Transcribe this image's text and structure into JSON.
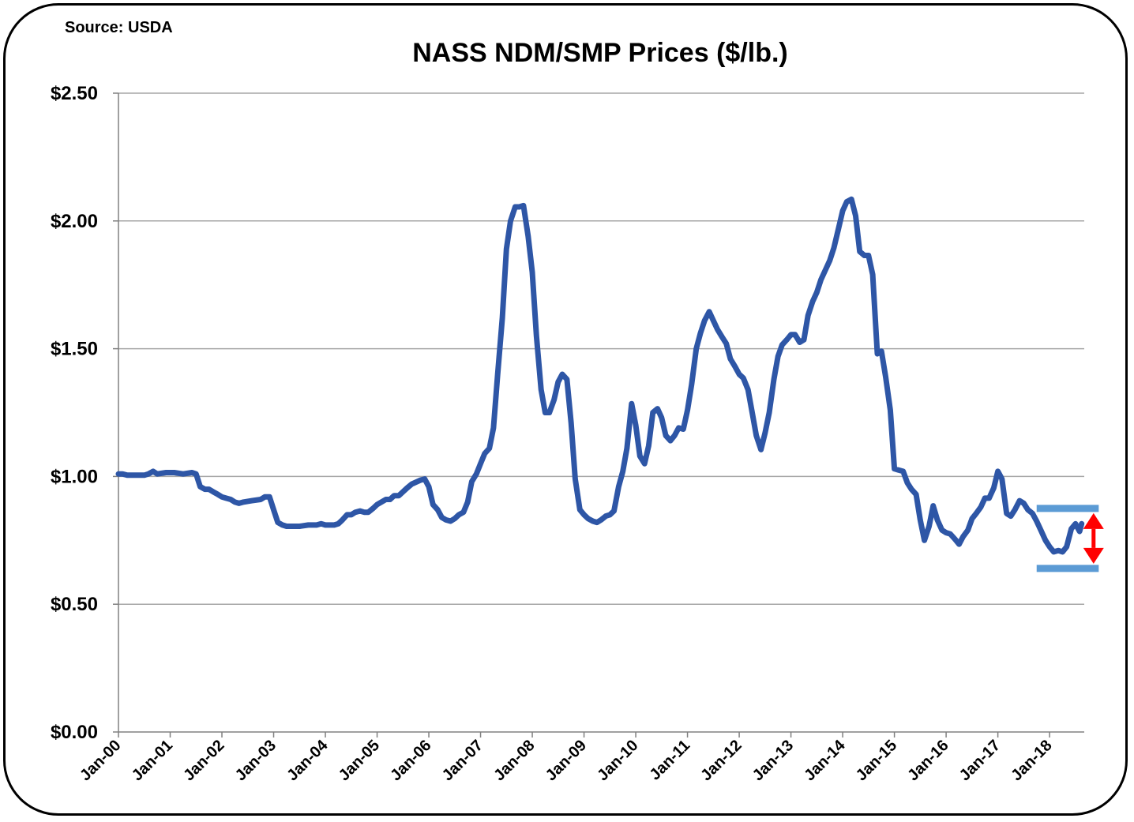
{
  "source": "Source: USDA",
  "title": "NASS NDM/SMP Prices ($/lb.)",
  "colors": {
    "line": "#2E56A6",
    "range_bar": "#5B9BD5",
    "arrow": "#FF0000",
    "grid": "#A6A6A6"
  },
  "chart_data": {
    "type": "line",
    "title": "NASS NDM/SMP Prices ($/lb.)",
    "xlabel": "",
    "ylabel": "",
    "ylim": [
      0,
      2.5
    ],
    "yticks": [
      {
        "value": 0,
        "label": "$0.00"
      },
      {
        "value": 0.5,
        "label": "$0.50"
      },
      {
        "value": 1.0,
        "label": "$1.00"
      },
      {
        "value": 1.5,
        "label": "$1.50"
      },
      {
        "value": 2.0,
        "label": "$2.00"
      },
      {
        "value": 2.5,
        "label": "$2.50"
      }
    ],
    "xlim": [
      2000.0,
      2018.67
    ],
    "xticks": [
      {
        "value": 2000,
        "label": "Jan-00"
      },
      {
        "value": 2001,
        "label": "Jan-01"
      },
      {
        "value": 2002,
        "label": "Jan-02"
      },
      {
        "value": 2003,
        "label": "Jan-03"
      },
      {
        "value": 2004,
        "label": "Jan-04"
      },
      {
        "value": 2005,
        "label": "Jan-05"
      },
      {
        "value": 2006,
        "label": "Jan-06"
      },
      {
        "value": 2007,
        "label": "Jan-07"
      },
      {
        "value": 2008,
        "label": "Jan-08"
      },
      {
        "value": 2009,
        "label": "Jan-09"
      },
      {
        "value": 2010,
        "label": "Jan-10"
      },
      {
        "value": 2011,
        "label": "Jan-11"
      },
      {
        "value": 2012,
        "label": "Jan-12"
      },
      {
        "value": 2013,
        "label": "Jan-13"
      },
      {
        "value": 2014,
        "label": "Jan-14"
      },
      {
        "value": 2015,
        "label": "Jan-15"
      },
      {
        "value": 2016,
        "label": "Jan-16"
      },
      {
        "value": 2017,
        "label": "Jan-17"
      },
      {
        "value": 2018,
        "label": "Jan-18"
      }
    ],
    "grid": true,
    "series": [
      {
        "name": "NDM/SMP price",
        "points": [
          [
            2000.0,
            1.01
          ],
          [
            2000.08,
            1.01
          ],
          [
            2000.17,
            1.005
          ],
          [
            2000.33,
            1.005
          ],
          [
            2000.5,
            1.005
          ],
          [
            2000.58,
            1.01
          ],
          [
            2000.67,
            1.02
          ],
          [
            2000.75,
            1.01
          ],
          [
            2000.92,
            1.015
          ],
          [
            2001.08,
            1.015
          ],
          [
            2001.25,
            1.01
          ],
          [
            2001.42,
            1.015
          ],
          [
            2001.5,
            1.01
          ],
          [
            2001.58,
            0.96
          ],
          [
            2001.67,
            0.95
          ],
          [
            2001.75,
            0.95
          ],
          [
            2001.83,
            0.94
          ],
          [
            2001.92,
            0.93
          ],
          [
            2002.0,
            0.92
          ],
          [
            2002.08,
            0.915
          ],
          [
            2002.17,
            0.91
          ],
          [
            2002.25,
            0.9
          ],
          [
            2002.33,
            0.895
          ],
          [
            2002.42,
            0.9
          ],
          [
            2002.58,
            0.905
          ],
          [
            2002.75,
            0.91
          ],
          [
            2002.83,
            0.92
          ],
          [
            2002.92,
            0.92
          ],
          [
            2003.0,
            0.87
          ],
          [
            2003.08,
            0.82
          ],
          [
            2003.17,
            0.81
          ],
          [
            2003.25,
            0.805
          ],
          [
            2003.5,
            0.805
          ],
          [
            2003.67,
            0.81
          ],
          [
            2003.83,
            0.81
          ],
          [
            2003.92,
            0.815
          ],
          [
            2004.0,
            0.81
          ],
          [
            2004.17,
            0.81
          ],
          [
            2004.25,
            0.815
          ],
          [
            2004.33,
            0.83
          ],
          [
            2004.42,
            0.85
          ],
          [
            2004.5,
            0.85
          ],
          [
            2004.58,
            0.86
          ],
          [
            2004.67,
            0.865
          ],
          [
            2004.75,
            0.86
          ],
          [
            2004.83,
            0.86
          ],
          [
            2004.92,
            0.875
          ],
          [
            2005.0,
            0.89
          ],
          [
            2005.17,
            0.91
          ],
          [
            2005.25,
            0.91
          ],
          [
            2005.33,
            0.925
          ],
          [
            2005.42,
            0.925
          ],
          [
            2005.5,
            0.94
          ],
          [
            2005.58,
            0.955
          ],
          [
            2005.67,
            0.97
          ],
          [
            2005.83,
            0.985
          ],
          [
            2005.92,
            0.99
          ],
          [
            2006.0,
            0.96
          ],
          [
            2006.08,
            0.89
          ],
          [
            2006.17,
            0.87
          ],
          [
            2006.25,
            0.84
          ],
          [
            2006.33,
            0.83
          ],
          [
            2006.42,
            0.825
          ],
          [
            2006.5,
            0.835
          ],
          [
            2006.58,
            0.85
          ],
          [
            2006.67,
            0.86
          ],
          [
            2006.75,
            0.9
          ],
          [
            2006.83,
            0.98
          ],
          [
            2006.92,
            1.01
          ],
          [
            2007.0,
            1.05
          ],
          [
            2007.08,
            1.09
          ],
          [
            2007.17,
            1.11
          ],
          [
            2007.25,
            1.19
          ],
          [
            2007.33,
            1.4
          ],
          [
            2007.42,
            1.62
          ],
          [
            2007.5,
            1.89
          ],
          [
            2007.58,
            2.0
          ],
          [
            2007.67,
            2.055
          ],
          [
            2007.75,
            2.055
          ],
          [
            2007.83,
            2.06
          ],
          [
            2007.92,
            1.94
          ],
          [
            2008.0,
            1.8
          ],
          [
            2008.08,
            1.55
          ],
          [
            2008.17,
            1.34
          ],
          [
            2008.25,
            1.25
          ],
          [
            2008.33,
            1.25
          ],
          [
            2008.42,
            1.3
          ],
          [
            2008.5,
            1.37
          ],
          [
            2008.58,
            1.4
          ],
          [
            2008.67,
            1.38
          ],
          [
            2008.75,
            1.21
          ],
          [
            2008.83,
            0.99
          ],
          [
            2008.92,
            0.87
          ],
          [
            2009.0,
            0.85
          ],
          [
            2009.08,
            0.835
          ],
          [
            2009.17,
            0.825
          ],
          [
            2009.25,
            0.82
          ],
          [
            2009.33,
            0.83
          ],
          [
            2009.42,
            0.845
          ],
          [
            2009.5,
            0.85
          ],
          [
            2009.58,
            0.865
          ],
          [
            2009.67,
            0.96
          ],
          [
            2009.75,
            1.02
          ],
          [
            2009.83,
            1.11
          ],
          [
            2009.92,
            1.285
          ],
          [
            2010.0,
            1.2
          ],
          [
            2010.08,
            1.08
          ],
          [
            2010.17,
            1.05
          ],
          [
            2010.25,
            1.12
          ],
          [
            2010.33,
            1.25
          ],
          [
            2010.42,
            1.265
          ],
          [
            2010.5,
            1.23
          ],
          [
            2010.58,
            1.16
          ],
          [
            2010.67,
            1.14
          ],
          [
            2010.75,
            1.16
          ],
          [
            2010.83,
            1.19
          ],
          [
            2010.92,
            1.185
          ],
          [
            2011.0,
            1.26
          ],
          [
            2011.08,
            1.36
          ],
          [
            2011.17,
            1.5
          ],
          [
            2011.25,
            1.56
          ],
          [
            2011.33,
            1.61
          ],
          [
            2011.42,
            1.645
          ],
          [
            2011.5,
            1.61
          ],
          [
            2011.58,
            1.575
          ],
          [
            2011.67,
            1.545
          ],
          [
            2011.75,
            1.52
          ],
          [
            2011.83,
            1.46
          ],
          [
            2011.92,
            1.43
          ],
          [
            2012.0,
            1.4
          ],
          [
            2012.08,
            1.385
          ],
          [
            2012.17,
            1.34
          ],
          [
            2012.25,
            1.25
          ],
          [
            2012.33,
            1.16
          ],
          [
            2012.42,
            1.105
          ],
          [
            2012.5,
            1.17
          ],
          [
            2012.58,
            1.25
          ],
          [
            2012.67,
            1.38
          ],
          [
            2012.75,
            1.47
          ],
          [
            2012.83,
            1.515
          ],
          [
            2012.92,
            1.535
          ],
          [
            2013.0,
            1.555
          ],
          [
            2013.08,
            1.555
          ],
          [
            2013.17,
            1.525
          ],
          [
            2013.25,
            1.535
          ],
          [
            2013.33,
            1.63
          ],
          [
            2013.42,
            1.685
          ],
          [
            2013.5,
            1.72
          ],
          [
            2013.58,
            1.77
          ],
          [
            2013.67,
            1.81
          ],
          [
            2013.75,
            1.845
          ],
          [
            2013.83,
            1.895
          ],
          [
            2013.92,
            1.97
          ],
          [
            2014.0,
            2.04
          ],
          [
            2014.08,
            2.075
          ],
          [
            2014.17,
            2.085
          ],
          [
            2014.25,
            2.02
          ],
          [
            2014.33,
            1.88
          ],
          [
            2014.42,
            1.865
          ],
          [
            2014.5,
            1.865
          ],
          [
            2014.58,
            1.79
          ],
          [
            2014.67,
            1.48
          ],
          [
            2014.75,
            1.49
          ],
          [
            2014.83,
            1.39
          ],
          [
            2014.92,
            1.26
          ],
          [
            2015.0,
            1.03
          ],
          [
            2015.08,
            1.025
          ],
          [
            2015.17,
            1.02
          ],
          [
            2015.25,
            0.975
          ],
          [
            2015.33,
            0.95
          ],
          [
            2015.42,
            0.93
          ],
          [
            2015.5,
            0.83
          ],
          [
            2015.58,
            0.75
          ],
          [
            2015.67,
            0.805
          ],
          [
            2015.75,
            0.885
          ],
          [
            2015.83,
            0.83
          ],
          [
            2015.92,
            0.79
          ],
          [
            2016.0,
            0.78
          ],
          [
            2016.08,
            0.775
          ],
          [
            2016.17,
            0.755
          ],
          [
            2016.25,
            0.735
          ],
          [
            2016.33,
            0.765
          ],
          [
            2016.42,
            0.79
          ],
          [
            2016.5,
            0.835
          ],
          [
            2016.58,
            0.855
          ],
          [
            2016.67,
            0.88
          ],
          [
            2016.75,
            0.915
          ],
          [
            2016.83,
            0.915
          ],
          [
            2016.92,
            0.955
          ],
          [
            2017.0,
            1.02
          ],
          [
            2017.08,
            0.99
          ],
          [
            2017.17,
            0.855
          ],
          [
            2017.25,
            0.845
          ],
          [
            2017.33,
            0.87
          ],
          [
            2017.42,
            0.905
          ],
          [
            2017.5,
            0.895
          ],
          [
            2017.58,
            0.87
          ],
          [
            2017.67,
            0.855
          ],
          [
            2017.75,
            0.825
          ],
          [
            2017.83,
            0.79
          ],
          [
            2017.92,
            0.75
          ],
          [
            2018.0,
            0.725
          ],
          [
            2018.08,
            0.705
          ],
          [
            2018.17,
            0.71
          ],
          [
            2018.25,
            0.705
          ],
          [
            2018.33,
            0.725
          ],
          [
            2018.42,
            0.795
          ],
          [
            2018.5,
            0.815
          ],
          [
            2018.58,
            0.785
          ],
          [
            2018.62,
            0.815
          ]
        ]
      }
    ],
    "annotations": [
      {
        "type": "hline",
        "name": "upper range bar",
        "y": 0.875,
        "x_start": 2017.75,
        "x_end": 2018.95
      },
      {
        "type": "hline",
        "name": "lower range bar",
        "y": 0.64,
        "x_start": 2017.75,
        "x_end": 2018.95
      },
      {
        "type": "double-arrow",
        "name": "range arrow",
        "x": 2018.85,
        "y_start": 0.64,
        "y_end": 0.875
      }
    ]
  }
}
